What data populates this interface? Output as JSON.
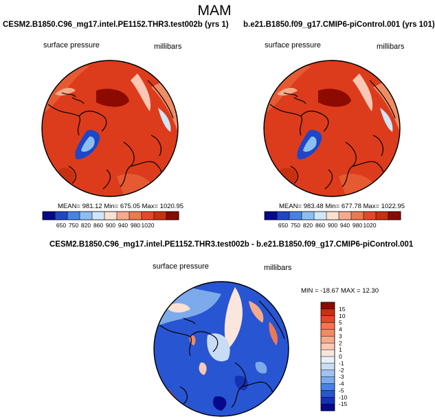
{
  "season": "MAM",
  "panels": [
    {
      "title": "CESM2.B1850.C96_mg17.intel.PE1152.THR3.test002b (yrs 1)",
      "variable": "surface pressure",
      "units": "millibars",
      "stats": "MEAN= 981.12  Min= 675.05  Max= 1020.95"
    },
    {
      "title": "b.e21.B1850.f09_g17.CMIP6-piControl.001 (yrs 101)",
      "variable": "surface pressure",
      "units": "millibars",
      "stats": "MEAN= 983.48  Min= 677.78  Max= 1022.95"
    }
  ],
  "diff": {
    "title": "CESM2.B1850.C96_mg17.intel.PE1152.THR3.test002b - b.e21.B1850.f09_g17.CMIP6-piControl.001",
    "variable": "surface pressure",
    "units": "millibars",
    "stats": "MIN = -18.67  MAX =  12.30"
  },
  "colorbar_main": {
    "labels": [
      "650",
      "750",
      "820",
      "860",
      "900",
      "940",
      "980",
      "1020"
    ],
    "colors": [
      "#08088c",
      "#1e46c8",
      "#4682e6",
      "#8cbef0",
      "#d2e6fa",
      "#fae1d2",
      "#f5aa8c",
      "#ee7850",
      "#e6462a",
      "#c8300f",
      "#8c0a00"
    ]
  },
  "colorbar_diff": {
    "labels": [
      "15",
      "10",
      "5",
      "4",
      "3",
      "2",
      "1",
      "0",
      "-1",
      "-2",
      "-3",
      "-4",
      "-5",
      "-10",
      "-15"
    ],
    "colors": [
      "#8c0a00",
      "#c8300f",
      "#e6462a",
      "#ee7850",
      "#f08c64",
      "#f5aa8c",
      "#fac8b4",
      "#fae6dc",
      "#e6f0fa",
      "#c8dcf5",
      "#a0c3f0",
      "#7daaeb",
      "#4682e6",
      "#2855d2",
      "#1432b4",
      "#08088c"
    ]
  }
}
